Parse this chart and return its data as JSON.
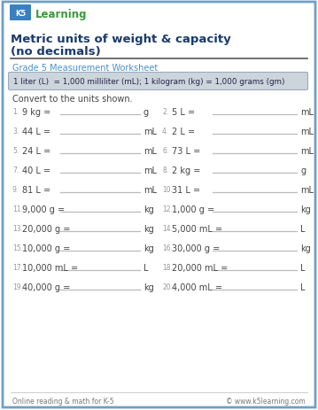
{
  "title_line1": "Metric units of weight & capacity",
  "title_line2": "(no decimals)",
  "subtitle": "Grade 5 Measurement Worksheet",
  "formula_box": "1 liter (L)  = 1,000 milliliter (mL); 1 kilogram (kg) = 1,000 grams (gm)",
  "instruction": "Convert to the units shown.",
  "problems": [
    {
      "num": "1.",
      "expr": "9 kg =",
      "unit": "g"
    },
    {
      "num": "2.",
      "expr": "5 L =",
      "unit": "mL"
    },
    {
      "num": "3.",
      "expr": "44 L =",
      "unit": "mL"
    },
    {
      "num": "4.",
      "expr": "2 L =",
      "unit": "mL"
    },
    {
      "num": "5.",
      "expr": "24 L =",
      "unit": "mL"
    },
    {
      "num": "6.",
      "expr": "73 L =",
      "unit": "mL"
    },
    {
      "num": "7.",
      "expr": "40 L =",
      "unit": "mL"
    },
    {
      "num": "8.",
      "expr": "2 kg =",
      "unit": "g"
    },
    {
      "num": "9.",
      "expr": "81 L =",
      "unit": "mL"
    },
    {
      "num": "10.",
      "expr": "31 L =",
      "unit": "mL"
    },
    {
      "num": "11.",
      "expr": "9,000 g =",
      "unit": "kg"
    },
    {
      "num": "12.",
      "expr": "1,000 g =",
      "unit": "kg"
    },
    {
      "num": "13.",
      "expr": "20,000 g =",
      "unit": "kg"
    },
    {
      "num": "14.",
      "expr": "5,000 mL =",
      "unit": "L"
    },
    {
      "num": "15.",
      "expr": "10,000 g =",
      "unit": "kg"
    },
    {
      "num": "16.",
      "expr": "30,000 g =",
      "unit": "kg"
    },
    {
      "num": "17.",
      "expr": "10,000 mL =",
      "unit": "L"
    },
    {
      "num": "18.",
      "expr": "20,000 mL =",
      "unit": "L"
    },
    {
      "num": "19.",
      "expr": "40,000 g =",
      "unit": "kg"
    },
    {
      "num": "20.",
      "expr": "4,000 mL =",
      "unit": "L"
    }
  ],
  "footer_left": "Online reading & math for K-5",
  "footer_right": "© www.k5learning.com",
  "bg_color": "#ffffff",
  "border_color": "#6ca0c8",
  "title_color": "#1a3a6b",
  "subtitle_color": "#4a90c8",
  "formula_bg": "#cdd5dc",
  "formula_border": "#9aaabb",
  "formula_text_color": "#222244",
  "problem_color": "#444444",
  "number_color": "#999999",
  "unit_color": "#444444",
  "footer_color": "#777777",
  "line_color": "#bbbbbb",
  "title_line_color": "#555555",
  "logo_k5_color": "#ffffff",
  "logo_bg_color": "#3a7ec8",
  "logo_text_color": "#3a9a3a"
}
